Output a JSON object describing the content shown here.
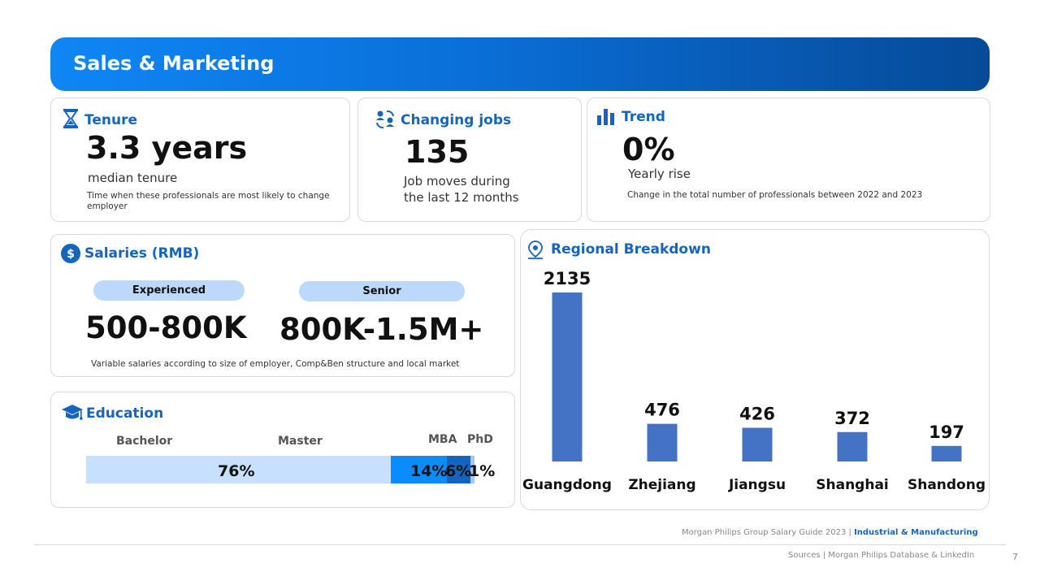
{
  "header": {
    "title": "Sales & Marketing"
  },
  "tenure": {
    "title": "Tenure",
    "value": "3.3 years",
    "label": "median tenure",
    "note": "Time when these professionals are most likely to  change employer"
  },
  "changing_jobs": {
    "title": "Changing jobs",
    "value": "135",
    "label_line1": "Job moves during",
    "label_line2": "the last 12 months"
  },
  "trend": {
    "title": "Trend",
    "value": "0%",
    "label": "Yearly rise",
    "note": "Change in the total number of professionals between 2022 and 2023"
  },
  "salaries": {
    "title": "Salaries (RMB)",
    "experienced_label": "Experienced",
    "experienced_value": "500-800K",
    "senior_label": "Senior",
    "senior_value": "800K-1.5M+",
    "note": "Variable salaries according to size of employer, Comp&Ben structure and local market"
  },
  "education": {
    "title": "Education",
    "segments": [
      {
        "label": "Bachelor",
        "value": "76%",
        "fraction": 0.76,
        "color": "#c6e0fd"
      },
      {
        "label": "Master",
        "value": "14%",
        "fraction": 0.14,
        "color": "#0a8cff"
      },
      {
        "label": "MBA",
        "value": "6%",
        "fraction": 0.06,
        "color": "#1565c0"
      },
      {
        "label": "PhD",
        "value": "1%",
        "fraction": 0.01,
        "color": "#9ec8f5"
      }
    ]
  },
  "regional": {
    "title": "Regional Breakdown"
  },
  "chart_data": {
    "type": "bar",
    "title": "Regional Breakdown",
    "categories": [
      "Guangdong",
      "Zhejiang",
      "Jiangsu",
      "Shanghai",
      "Shandong"
    ],
    "values": [
      2135,
      476,
      426,
      372,
      197
    ],
    "data_labels": [
      "2135",
      "476",
      "426",
      "372",
      "197"
    ],
    "bar_color": "#4472c4",
    "ylim": [
      0,
      2135
    ]
  },
  "footer": {
    "guide": "Morgan Philips Group Salary Guide 2023 |",
    "sector": "Industrial & Manufacturing",
    "sources": "Sources | Morgan Philips Database & LinkedIn",
    "page": "7"
  },
  "colors": {
    "accent": "#1565c0",
    "banner_start": "#0f86f5",
    "banner_end": "#064a98"
  }
}
